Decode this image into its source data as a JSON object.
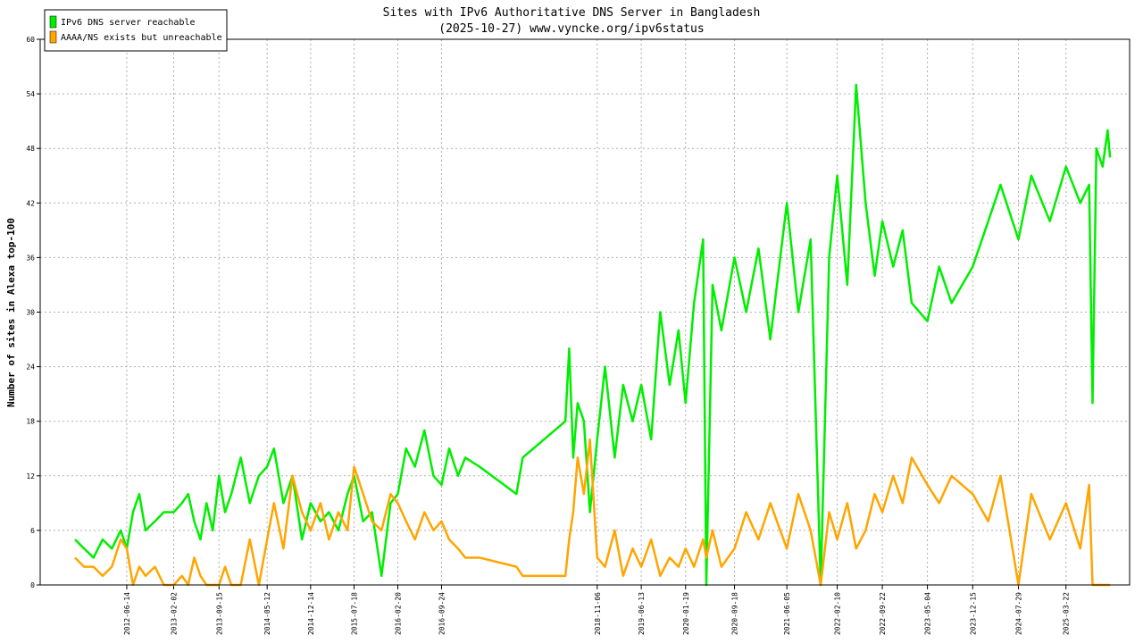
{
  "chart_data": {
    "type": "line",
    "title": "Sites with IPv6 Authoritative DNS Server in Bangladesh",
    "subtitle": "(2025-10-27) www.vyncke.org/ipv6status",
    "y_label": "Number of sites in Alexa top-100",
    "ylim": [
      0,
      60
    ],
    "yticks": [
      0,
      6,
      12,
      18,
      24,
      30,
      36,
      42,
      48,
      54,
      60
    ],
    "xlim": [
      "2011-04-11",
      "2026-02-01"
    ],
    "xticks": [
      "2012-06-14",
      "2013-02-02",
      "2013-09-15",
      "2014-05-12",
      "2014-12-14",
      "2015-07-18",
      "2016-02-20",
      "2016-09-24",
      "2018-11-06",
      "2019-06-13",
      "2020-01-19",
      "2020-09-18",
      "2021-06-05",
      "2022-02-10",
      "2022-09-22",
      "2023-05-04",
      "2023-12-15",
      "2024-07-29",
      "2025-03-22"
    ],
    "grid": true,
    "legend": "top-left",
    "x": [
      "2011-10-01",
      "2011-11-15",
      "2012-01-01",
      "2012-02-15",
      "2012-04-01",
      "2012-05-15",
      "2012-06-14",
      "2012-07-15",
      "2012-08-15",
      "2012-09-15",
      "2012-11-01",
      "2012-12-15",
      "2013-02-02",
      "2013-03-15",
      "2013-04-15",
      "2013-05-15",
      "2013-06-15",
      "2013-07-15",
      "2013-08-15",
      "2013-09-15",
      "2013-10-15",
      "2013-11-15",
      "2014-01-01",
      "2014-02-15",
      "2014-04-01",
      "2014-05-12",
      "2014-06-15",
      "2014-08-01",
      "2014-09-15",
      "2014-11-01",
      "2014-12-14",
      "2015-02-01",
      "2015-03-15",
      "2015-05-01",
      "2015-06-15",
      "2015-07-18",
      "2015-09-01",
      "2015-10-15",
      "2015-12-01",
      "2016-01-15",
      "2016-02-20",
      "2016-04-01",
      "2016-05-15",
      "2016-07-01",
      "2016-08-15",
      "2016-09-24",
      "2016-11-01",
      "2016-12-15",
      "2017-01-20",
      "2017-04-01",
      "2017-10-01",
      "2017-11-01",
      "2018-06-01",
      "2018-06-20",
      "2018-07-10",
      "2018-08-01",
      "2018-09-01",
      "2018-10-01",
      "2018-11-06",
      "2018-12-15",
      "2019-02-01",
      "2019-03-15",
      "2019-05-01",
      "2019-06-13",
      "2019-08-01",
      "2019-09-15",
      "2019-11-01",
      "2019-12-15",
      "2020-01-19",
      "2020-03-01",
      "2020-04-15",
      "2020-05-01",
      "2020-06-01",
      "2020-07-15",
      "2020-09-18",
      "2020-11-15",
      "2021-01-15",
      "2021-03-15",
      "2021-06-05",
      "2021-08-01",
      "2021-10-01",
      "2021-11-20",
      "2022-01-01",
      "2022-02-10",
      "2022-04-01",
      "2022-05-15",
      "2022-07-01",
      "2022-08-15",
      "2022-09-22",
      "2022-11-15",
      "2023-01-01",
      "2023-02-15",
      "2023-05-04",
      "2023-07-01",
      "2023-09-01",
      "2023-12-15",
      "2024-03-01",
      "2024-05-01",
      "2024-07-29",
      "2024-10-01",
      "2025-01-01",
      "2025-03-22",
      "2025-06-01",
      "2025-07-15",
      "2025-08-01",
      "2025-08-20",
      "2025-09-20",
      "2025-10-15",
      "2025-10-27"
    ],
    "series": [
      {
        "name": "IPv6 DNS server reachable",
        "color": "#00ee00",
        "values": [
          5,
          4,
          3,
          5,
          4,
          6,
          4,
          8,
          10,
          6,
          7,
          8,
          8,
          9,
          10,
          7,
          5,
          9,
          6,
          12,
          8,
          10,
          14,
          9,
          12,
          13,
          15,
          9,
          12,
          5,
          9,
          7,
          8,
          6,
          10,
          12,
          7,
          8,
          1,
          9,
          10,
          15,
          13,
          17,
          12,
          11,
          15,
          12,
          14,
          13,
          10,
          14,
          18,
          26,
          14,
          20,
          18,
          8,
          16,
          24,
          14,
          22,
          18,
          22,
          16,
          30,
          22,
          28,
          20,
          31,
          38,
          0,
          33,
          28,
          36,
          30,
          37,
          27,
          42,
          30,
          38,
          0,
          36,
          45,
          33,
          55,
          42,
          34,
          40,
          35,
          39,
          31,
          29,
          35,
          31,
          35,
          40,
          44,
          38,
          45,
          40,
          46,
          42,
          44,
          20,
          48,
          46,
          50,
          47
        ]
      },
      {
        "name": "AAAA/NS exists but unreachable",
        "color": "#ffa500",
        "values": [
          3,
          2,
          2,
          1,
          2,
          5,
          4,
          0,
          2,
          1,
          2,
          0,
          0,
          1,
          0,
          3,
          1,
          0,
          0,
          0,
          2,
          0,
          0,
          5,
          0,
          5,
          9,
          4,
          12,
          8,
          6,
          9,
          5,
          8,
          6,
          13,
          10,
          7,
          6,
          10,
          9,
          7,
          5,
          8,
          6,
          7,
          5,
          4,
          3,
          3,
          2,
          1,
          1,
          5,
          8,
          14,
          10,
          16,
          3,
          2,
          6,
          1,
          4,
          2,
          5,
          1,
          3,
          2,
          4,
          2,
          5,
          3,
          6,
          2,
          4,
          8,
          5,
          9,
          4,
          10,
          6,
          0,
          8,
          5,
          9,
          4,
          6,
          10,
          8,
          12,
          9,
          14,
          11,
          9,
          12,
          10,
          7,
          12,
          0,
          10,
          5,
          9,
          4,
          11,
          0,
          0,
          0,
          0,
          0
        ]
      }
    ]
  }
}
